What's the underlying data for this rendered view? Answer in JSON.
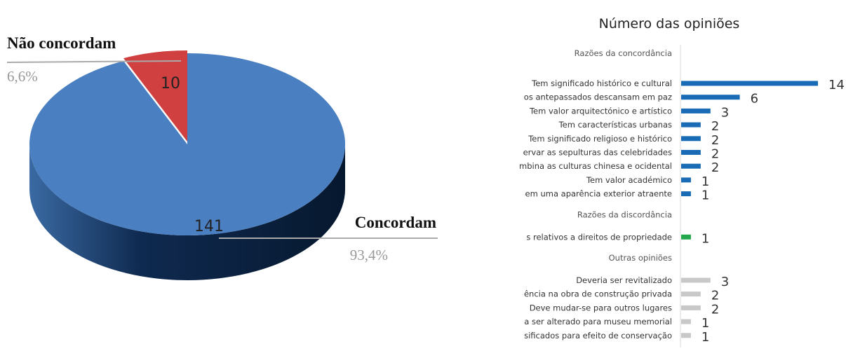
{
  "chart_data": [
    {
      "type": "pie",
      "categories": [
        "Concordam",
        "Não concordam"
      ],
      "values": [
        141,
        10
      ],
      "percent_labels": [
        "93,4%",
        "6,6%"
      ],
      "colors": [
        "#4a7fc1",
        "#d04040"
      ]
    },
    {
      "type": "bar",
      "orientation": "horizontal",
      "title": "Número das opiniões",
      "groups": [
        {
          "label": "Razões da concordância",
          "color": "#1a6bb5",
          "items": [
            {
              "label": "Tem significado histórico e cultural",
              "value": 14
            },
            {
              "label": "os antepassados descansam em paz",
              "value": 6
            },
            {
              "label": "Tem valor arquitectónico e artístico",
              "value": 3
            },
            {
              "label": "Tem características urbanas",
              "value": 2
            },
            {
              "label": "Tem significado religioso e histórico",
              "value": 2
            },
            {
              "label": "ervar as sepulturas das celebridades",
              "value": 2
            },
            {
              "label": "mbina as culturas chinesa e ocidental",
              "value": 2
            },
            {
              "label": "Tem valor académico",
              "value": 1
            },
            {
              "label": "em uma aparência exterior atraente",
              "value": 1
            }
          ]
        },
        {
          "label": "Razões da discordância",
          "color": "#22a84a",
          "items": [
            {
              "label": "s relativos a direitos de propriedade",
              "value": 1
            }
          ]
        },
        {
          "label": "Outras opiniões",
          "color": "#c8c8c8",
          "items": [
            {
              "label": "Deveria ser revitalizado",
              "value": 3
            },
            {
              "label": "ência na obra de construção privada",
              "value": 2
            },
            {
              "label": "Deve mudar-se para outros lugares",
              "value": 2
            },
            {
              "label": "a ser alterado para museu memorial",
              "value": 1
            },
            {
              "label": "sificados para efeito de conservação",
              "value": 1
            }
          ]
        }
      ]
    }
  ]
}
